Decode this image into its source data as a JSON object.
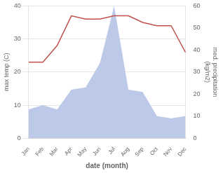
{
  "chart_data": {
    "type": "line",
    "categories": [
      "Jan",
      "Feb",
      "Mar",
      "Apr",
      "May",
      "Jun",
      "Jul",
      "Aug",
      "Sep",
      "Oct",
      "Nov",
      "Dec"
    ],
    "series": [
      {
        "type": "area",
        "color": "#bdc9e8",
        "axis": "y2",
        "values": [
          13,
          15,
          13,
          22,
          23,
          34,
          60,
          22,
          21,
          10,
          9,
          10
        ]
      },
      {
        "type": "line",
        "color": "#c0504d",
        "values": [
          23,
          23,
          28,
          37,
          36,
          36,
          37,
          37,
          35,
          34,
          34,
          26
        ]
      }
    ],
    "xlabel": "date (month)",
    "ylabel": "max temp (C)",
    "y2label": "med. precipitation\n(kg/m2)",
    "ylim": [
      0,
      40
    ],
    "yticks": [
      0,
      10,
      20,
      30,
      40
    ],
    "y2lim": [
      0,
      60
    ],
    "y2ticks": [
      0,
      10,
      20,
      30,
      40,
      50,
      60
    ],
    "grid": true
  }
}
